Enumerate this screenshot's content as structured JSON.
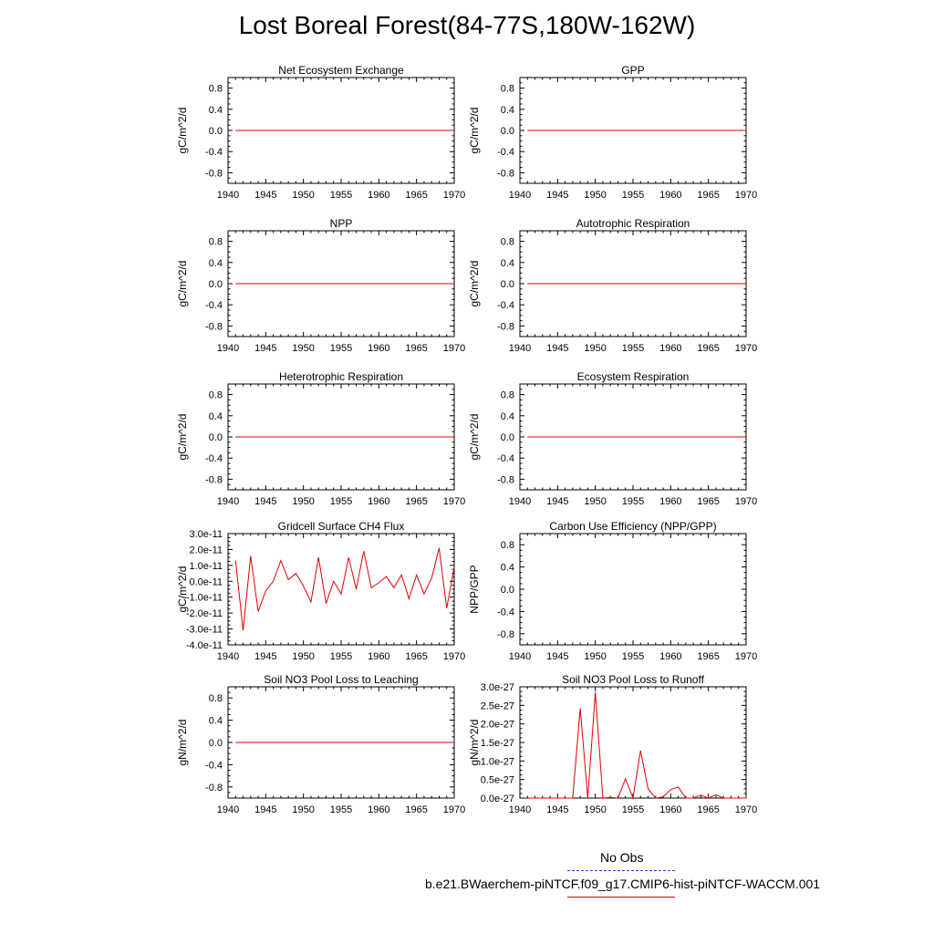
{
  "title": "Lost Boreal Forest(84-77S,180W-162W)",
  "legend": {
    "obs_label": "No Obs",
    "obs_color": "#3333cc",
    "model_label": "b.e21.BWaerchem-piNTCF.f09_g17.CMIP6-hist-piNTCF-WACCM.001",
    "model_color": "#e00000"
  },
  "chart_data": [
    {
      "type": "line",
      "title": "Net Ecosystem Exchange",
      "ylabel": "gC/m^2/d",
      "xlim": [
        1940,
        1970
      ],
      "ylim": [
        -1,
        1
      ],
      "xticks": [
        "1940",
        "1945",
        "1950",
        "1955",
        "1960",
        "1965",
        "1970"
      ],
      "yticks": [
        {
          "v": 0.8,
          "label": "0.8"
        },
        {
          "v": 0.4,
          "label": "0.4"
        },
        {
          "v": 0.0,
          "label": "0.0"
        },
        {
          "v": -0.4,
          "label": "-0.4"
        },
        {
          "v": -0.8,
          "label": "-0.8"
        }
      ],
      "series": [
        {
          "x": [
            1941,
            1970
          ],
          "y": [
            0,
            0
          ]
        }
      ]
    },
    {
      "type": "line",
      "title": "GPP",
      "ylabel": "gC/m^2/d",
      "xlim": [
        1940,
        1970
      ],
      "ylim": [
        -1,
        1
      ],
      "xticks": [
        "1940",
        "1945",
        "1950",
        "1955",
        "1960",
        "1965",
        "1970"
      ],
      "yticks": [
        {
          "v": 0.8,
          "label": "0.8"
        },
        {
          "v": 0.4,
          "label": "0.4"
        },
        {
          "v": 0.0,
          "label": "0.0"
        },
        {
          "v": -0.4,
          "label": "-0.4"
        },
        {
          "v": -0.8,
          "label": "-0.8"
        }
      ],
      "series": [
        {
          "x": [
            1941,
            1970
          ],
          "y": [
            0,
            0
          ]
        }
      ]
    },
    {
      "type": "line",
      "title": "NPP",
      "ylabel": "gC/m^2/d",
      "xlim": [
        1940,
        1970
      ],
      "ylim": [
        -1,
        1
      ],
      "xticks": [
        "1940",
        "1945",
        "1950",
        "1955",
        "1960",
        "1965",
        "1970"
      ],
      "yticks": [
        {
          "v": 0.8,
          "label": "0.8"
        },
        {
          "v": 0.4,
          "label": "0.4"
        },
        {
          "v": 0.0,
          "label": "0.0"
        },
        {
          "v": -0.4,
          "label": "-0.4"
        },
        {
          "v": -0.8,
          "label": "-0.8"
        }
      ],
      "series": [
        {
          "x": [
            1941,
            1970
          ],
          "y": [
            0,
            0
          ]
        }
      ]
    },
    {
      "type": "line",
      "title": "Autotrophic Respiration",
      "ylabel": "gC/m^2/d",
      "xlim": [
        1940,
        1970
      ],
      "ylim": [
        -1,
        1
      ],
      "xticks": [
        "1940",
        "1945",
        "1950",
        "1955",
        "1960",
        "1965",
        "1970"
      ],
      "yticks": [
        {
          "v": 0.8,
          "label": "0.8"
        },
        {
          "v": 0.4,
          "label": "0.4"
        },
        {
          "v": 0.0,
          "label": "0.0"
        },
        {
          "v": -0.4,
          "label": "-0.4"
        },
        {
          "v": -0.8,
          "label": "-0.8"
        }
      ],
      "series": [
        {
          "x": [
            1941,
            1970
          ],
          "y": [
            0,
            0
          ]
        }
      ]
    },
    {
      "type": "line",
      "title": "Heterotrophic Respiration",
      "ylabel": "gC/m^2/d",
      "xlim": [
        1940,
        1970
      ],
      "ylim": [
        -1,
        1
      ],
      "xticks": [
        "1940",
        "1945",
        "1950",
        "1955",
        "1960",
        "1965",
        "1970"
      ],
      "yticks": [
        {
          "v": 0.8,
          "label": "0.8"
        },
        {
          "v": 0.4,
          "label": "0.4"
        },
        {
          "v": 0.0,
          "label": "0.0"
        },
        {
          "v": -0.4,
          "label": "-0.4"
        },
        {
          "v": -0.8,
          "label": "-0.8"
        }
      ],
      "series": [
        {
          "x": [
            1941,
            1970
          ],
          "y": [
            0,
            0
          ]
        }
      ]
    },
    {
      "type": "line",
      "title": "Ecosystem Respiration",
      "ylabel": "gC/m^2/d",
      "xlim": [
        1940,
        1970
      ],
      "ylim": [
        -1,
        1
      ],
      "xticks": [
        "1940",
        "1945",
        "1950",
        "1955",
        "1960",
        "1965",
        "1970"
      ],
      "yticks": [
        {
          "v": 0.8,
          "label": "0.8"
        },
        {
          "v": 0.4,
          "label": "0.4"
        },
        {
          "v": 0.0,
          "label": "0.0"
        },
        {
          "v": -0.4,
          "label": "-0.4"
        },
        {
          "v": -0.8,
          "label": "-0.8"
        }
      ],
      "series": [
        {
          "x": [
            1941,
            1970
          ],
          "y": [
            0,
            0
          ]
        }
      ]
    },
    {
      "type": "line",
      "title": "Gridcell Surface CH4 Flux",
      "ylabel": "gC/m^2/d",
      "xlim": [
        1940,
        1970
      ],
      "ylim": [
        -4e-11,
        3e-11
      ],
      "xticks": [
        "1940",
        "1945",
        "1950",
        "1955",
        "1960",
        "1965",
        "1970"
      ],
      "yticks": [
        {
          "v": 3e-11,
          "label": "3.0e-11"
        },
        {
          "v": 2e-11,
          "label": "2.0e-11"
        },
        {
          "v": 1e-11,
          "label": "1.0e-11"
        },
        {
          "v": 0,
          "label": "0.0e-11"
        },
        {
          "v": -1e-11,
          "label": "-1.0e-11"
        },
        {
          "v": -2e-11,
          "label": "-2.0e-11"
        },
        {
          "v": -3e-11,
          "label": "-3.0e-11"
        },
        {
          "v": -4e-11,
          "label": "-4.0e-11"
        }
      ],
      "series": [
        {
          "x": [
            1941,
            1942,
            1943,
            1944,
            1945,
            1946,
            1947,
            1948,
            1949,
            1950,
            1951,
            1952,
            1953,
            1954,
            1955,
            1956,
            1957,
            1958,
            1959,
            1960,
            1961,
            1962,
            1963,
            1964,
            1965,
            1966,
            1967,
            1968,
            1969,
            1970
          ],
          "y": [
            1.3e-11,
            -3.1e-11,
            1.6e-11,
            -1.9e-11,
            -6e-12,
            0.0,
            1.3e-11,
            1e-12,
            5e-12,
            -3e-12,
            -1.3e-11,
            1.5e-11,
            -1.4e-11,
            0.0,
            -8e-12,
            1.5e-11,
            -5e-12,
            1.9e-11,
            -4e-12,
            -1e-12,
            3e-12,
            -4e-12,
            4e-12,
            -1.1e-11,
            4e-12,
            -8e-12,
            2e-12,
            2.1e-11,
            -1.7e-11,
            9e-12
          ]
        }
      ]
    },
    {
      "type": "line",
      "title": "Carbon Use Efficiency (NPP/GPP)",
      "ylabel": "NPP/GPP",
      "xlim": [
        1940,
        1970
      ],
      "ylim": [
        -1,
        1
      ],
      "xticks": [
        "1940",
        "1945",
        "1950",
        "1955",
        "1960",
        "1965",
        "1970"
      ],
      "yticks": [
        {
          "v": 0.8,
          "label": "0.8"
        },
        {
          "v": 0.4,
          "label": "0.4"
        },
        {
          "v": 0.0,
          "label": "0.0"
        },
        {
          "v": -0.4,
          "label": "-0.4"
        },
        {
          "v": -0.8,
          "label": "-0.8"
        }
      ],
      "series": []
    },
    {
      "type": "line",
      "title": "Soil NO3 Pool Loss to Leaching",
      "ylabel": "gN/m^2/d",
      "xlim": [
        1940,
        1970
      ],
      "ylim": [
        -1,
        1
      ],
      "xticks": [
        "1940",
        "1945",
        "1950",
        "1955",
        "1960",
        "1965",
        "1970"
      ],
      "yticks": [
        {
          "v": 0.8,
          "label": "0.8"
        },
        {
          "v": 0.4,
          "label": "0.4"
        },
        {
          "v": 0.0,
          "label": "0.0"
        },
        {
          "v": -0.4,
          "label": "-0.4"
        },
        {
          "v": -0.8,
          "label": "-0.8"
        }
      ],
      "series": [
        {
          "x": [
            1941,
            1970
          ],
          "y": [
            0,
            0
          ]
        }
      ]
    },
    {
      "type": "line",
      "title": "Soil NO3 Pool Loss to Runoff",
      "ylabel": "gN/m^2/d",
      "xlim": [
        1940,
        1970
      ],
      "ylim": [
        0,
        3e-27
      ],
      "xticks": [
        "1940",
        "1945",
        "1950",
        "1955",
        "1960",
        "1965",
        "1970"
      ],
      "yticks": [
        {
          "v": 3e-27,
          "label": "3.0e-27"
        },
        {
          "v": 2.5e-27,
          "label": "2.5e-27"
        },
        {
          "v": 2e-27,
          "label": "2.0e-27"
        },
        {
          "v": 1.5e-27,
          "label": "1.5e-27"
        },
        {
          "v": 1e-27,
          "label": "1.0e-27"
        },
        {
          "v": 5e-28,
          "label": "0.5e-27"
        },
        {
          "v": 0,
          "label": "0.0e-27"
        }
      ],
      "series": [
        {
          "x": [
            1941,
            1942,
            1943,
            1944,
            1945,
            1946,
            1947,
            1948,
            1949,
            1950,
            1951,
            1952,
            1953,
            1954,
            1955,
            1956,
            1957,
            1958,
            1959,
            1960,
            1961,
            1962,
            1963,
            1964,
            1965,
            1966,
            1967,
            1968,
            1969,
            1970
          ],
          "y": [
            0,
            0,
            0,
            0,
            0,
            0,
            0,
            2.42e-27,
            0,
            2.85e-27,
            0,
            2e-29,
            0,
            5.2e-28,
            0,
            1.28e-27,
            2.5e-28,
            0,
            3e-29,
            2.3e-28,
            3e-28,
            0,
            0,
            8e-29,
            0,
            9e-29,
            0,
            0,
            0,
            0
          ]
        }
      ]
    }
  ]
}
